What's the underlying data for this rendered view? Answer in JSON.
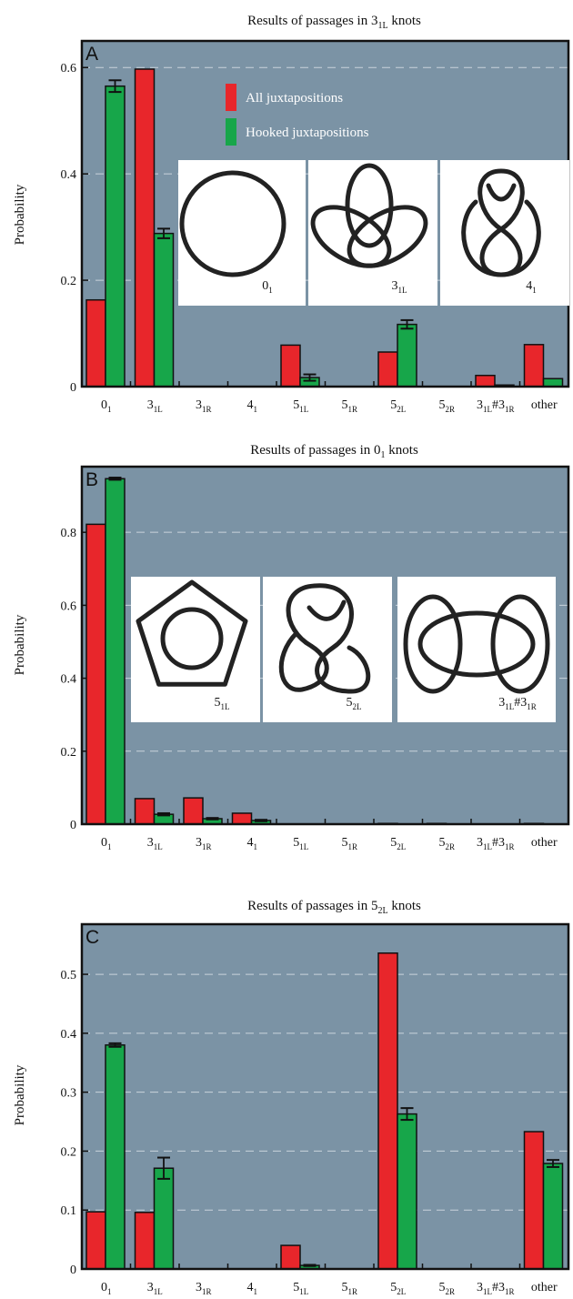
{
  "chart_data": [
    {
      "type": "bar",
      "panel_label": "A",
      "title_main": "Results of passages in 3",
      "title_sub": "1L",
      "title_tail": " knots",
      "ylabel": "Probability",
      "ylim": [
        0,
        0.65
      ],
      "yticks": [
        "0",
        "0.2",
        "0.4",
        "0.6"
      ],
      "ytick_values": [
        0,
        0.2,
        0.4,
        0.6
      ],
      "grid_values": [
        0.2,
        0.4,
        0.6
      ],
      "grid": "dashed",
      "legend": {
        "placement": "top-center",
        "entries": [
          "All juxtapositions",
          "Hooked juxtapositions"
        ]
      },
      "categories": [
        {
          "main": "0",
          "sub": "1"
        },
        {
          "main": "3",
          "sub": "1L"
        },
        {
          "main": "3",
          "sub": "1R"
        },
        {
          "main": "4",
          "sub": "1"
        },
        {
          "main": "5",
          "sub": "1L"
        },
        {
          "main": "5",
          "sub": "1R"
        },
        {
          "main": "5",
          "sub": "2L"
        },
        {
          "main": "5",
          "sub": "2R"
        },
        {
          "main": "3",
          "sub": "1L",
          "mid": "#3",
          "sub2": "1R"
        },
        {
          "main": "other"
        }
      ],
      "series": [
        {
          "name": "All juxtapositions",
          "color": "#e8262b",
          "values": [
            0.163,
            0.597,
            0,
            0,
            0.078,
            0,
            0.065,
            0,
            0.021,
            0.079
          ],
          "errors": [
            0,
            0,
            0,
            0,
            0,
            0,
            0,
            0,
            0,
            0
          ]
        },
        {
          "name": "Hooked juxtapositions",
          "color": "#17a64a",
          "values": [
            0.565,
            0.288,
            0,
            0,
            0.017,
            0,
            0.117,
            0,
            0.003,
            0.015
          ],
          "errors": [
            0.011,
            0.009,
            0,
            0,
            0.006,
            0,
            0.008,
            0,
            0,
            0
          ]
        }
      ],
      "knot_images": [
        {
          "kind": "unknot",
          "main": "0",
          "sub": "1"
        },
        {
          "kind": "trefoil",
          "main": "3",
          "sub": "1L"
        },
        {
          "kind": "figure-eight",
          "main": "4",
          "sub": "1"
        }
      ]
    },
    {
      "type": "bar",
      "panel_label": "B",
      "title_main": "Results of passages in 0",
      "title_sub": "1",
      "title_tail": " knots",
      "ylabel": "Probability",
      "ylim": [
        0,
        0.98
      ],
      "yticks": [
        "0",
        "0.2",
        "0.4",
        "0.6",
        "0.8"
      ],
      "ytick_values": [
        0,
        0.2,
        0.4,
        0.6,
        0.8
      ],
      "grid_values": [
        0.2,
        0.4,
        0.6,
        0.8
      ],
      "grid": "dashed",
      "categories": [
        {
          "main": "0",
          "sub": "1"
        },
        {
          "main": "3",
          "sub": "1L"
        },
        {
          "main": "3",
          "sub": "1R"
        },
        {
          "main": "4",
          "sub": "1"
        },
        {
          "main": "5",
          "sub": "1L"
        },
        {
          "main": "5",
          "sub": "1R"
        },
        {
          "main": "5",
          "sub": "2L"
        },
        {
          "main": "5",
          "sub": "2R"
        },
        {
          "main": "3",
          "sub": "1L",
          "mid": "#3",
          "sub2": "1R"
        },
        {
          "main": "other"
        }
      ],
      "series": [
        {
          "name": "All juxtapositions",
          "color": "#e8262b",
          "values": [
            0.822,
            0.07,
            0.072,
            0.03,
            0,
            0,
            0.002,
            0.002,
            0,
            0.002
          ],
          "errors": [
            0,
            0,
            0,
            0,
            0,
            0,
            0,
            0,
            0,
            0
          ]
        },
        {
          "name": "Hooked juxtapositions",
          "color": "#17a64a",
          "values": [
            0.947,
            0.027,
            0.015,
            0.01,
            0,
            0,
            0,
            0,
            0,
            0
          ],
          "errors": [
            0.003,
            0.003,
            0.002,
            0.002,
            0,
            0,
            0,
            0,
            0,
            0
          ]
        }
      ],
      "knot_images": [
        {
          "kind": "cinquefoil",
          "main": "5",
          "sub": "1L"
        },
        {
          "kind": "three-twist",
          "main": "5",
          "sub": "2L"
        },
        {
          "kind": "granny",
          "main": "3",
          "sub": "1L",
          "mid": "#3",
          "sub2": "1R"
        }
      ]
    },
    {
      "type": "bar",
      "panel_label": "C",
      "title_main": "Results of passages in 5",
      "title_sub": "2L",
      "title_tail": " knots",
      "ylabel": "Probability",
      "ylim": [
        0,
        0.585
      ],
      "yticks": [
        "0",
        "0.1",
        "0.2",
        "0.3",
        "0.4",
        "0.5"
      ],
      "ytick_values": [
        0,
        0.1,
        0.2,
        0.3,
        0.4,
        0.5
      ],
      "grid_values": [
        0.1,
        0.2,
        0.3,
        0.4,
        0.5
      ],
      "grid": "dashed",
      "categories": [
        {
          "main": "0",
          "sub": "1"
        },
        {
          "main": "3",
          "sub": "1L"
        },
        {
          "main": "3",
          "sub": "1R"
        },
        {
          "main": "4",
          "sub": "1"
        },
        {
          "main": "5",
          "sub": "1L"
        },
        {
          "main": "5",
          "sub": "1R"
        },
        {
          "main": "5",
          "sub": "2L"
        },
        {
          "main": "5",
          "sub": "2R"
        },
        {
          "main": "3",
          "sub": "1L",
          "mid": "#3",
          "sub2": "1R"
        },
        {
          "main": "other"
        }
      ],
      "series": [
        {
          "name": "All juxtapositions",
          "color": "#e8262b",
          "values": [
            0.097,
            0.096,
            0,
            0,
            0.04,
            0,
            0.536,
            0,
            0,
            0.233
          ],
          "errors": [
            0,
            0,
            0,
            0,
            0,
            0,
            0,
            0,
            0,
            0
          ]
        },
        {
          "name": "Hooked juxtapositions",
          "color": "#17a64a",
          "values": [
            0.38,
            0.171,
            0,
            0,
            0.006,
            0,
            0.263,
            0,
            0,
            0.179
          ],
          "errors": [
            0.003,
            0.018,
            0,
            0,
            0.001,
            0,
            0.01,
            0,
            0,
            0.006
          ]
        }
      ]
    }
  ]
}
